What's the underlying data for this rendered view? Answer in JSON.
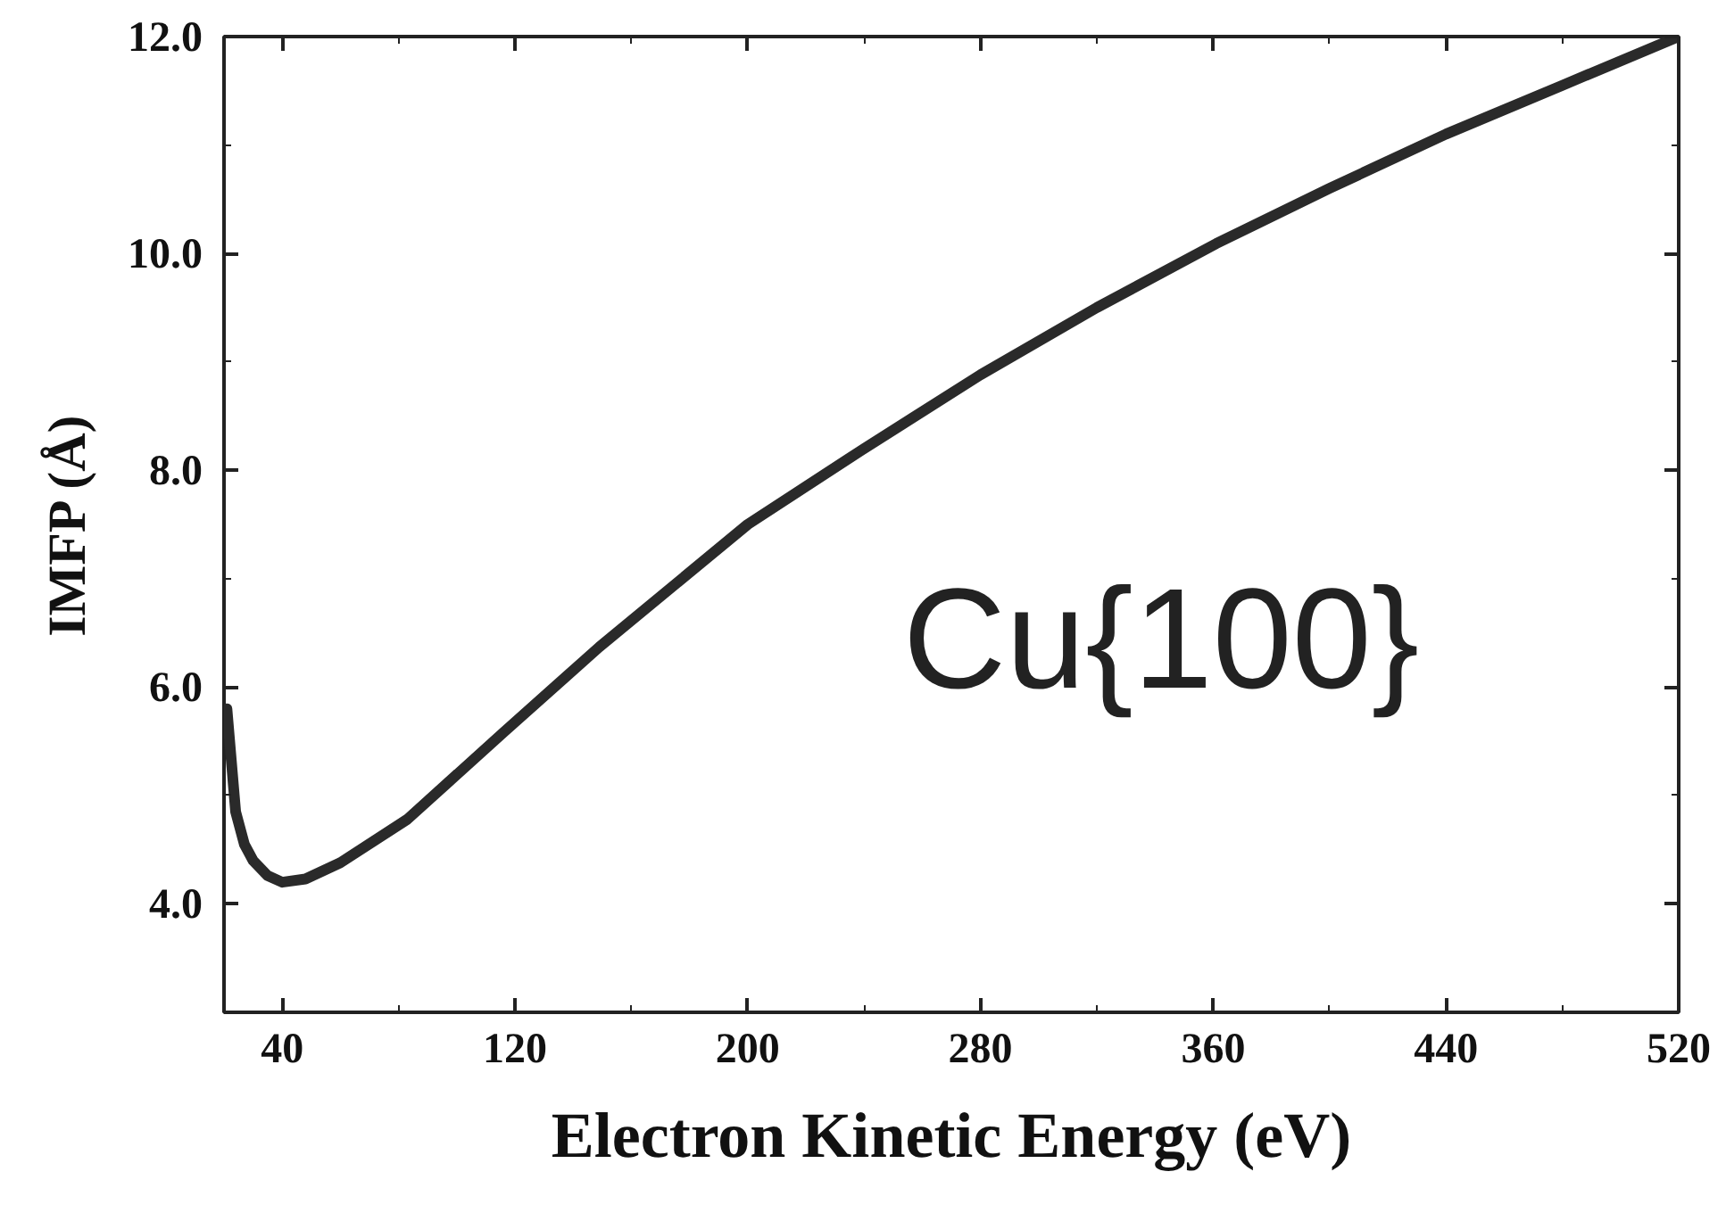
{
  "chart_data": {
    "type": "line",
    "xlabel": "Electron Kinetic Energy (eV)",
    "ylabel": "IMFP (Å)",
    "xlim": [
      20,
      520
    ],
    "ylim": [
      3,
      12
    ],
    "xticks": [
      40,
      120,
      200,
      280,
      360,
      440,
      520
    ],
    "yticks": [
      {
        "value": 4,
        "label": "4.0"
      },
      {
        "value": 6,
        "label": "6.0"
      },
      {
        "value": 8,
        "label": "8.0"
      },
      {
        "value": 10,
        "label": "10.0"
      },
      {
        "value": 12,
        "label": "12.0"
      }
    ],
    "grid": false,
    "line_style": "solid",
    "annotations": [
      "Cu{100}"
    ],
    "series": [
      {
        "color": "#2a2a2a",
        "x": [
          21,
          24,
          27,
          30,
          35,
          40,
          48,
          60,
          83,
          116,
          149,
          200,
          240,
          280,
          320,
          361,
          400,
          440,
          480,
          520
        ],
        "values": [
          5.8,
          4.85,
          4.55,
          4.4,
          4.26,
          4.2,
          4.23,
          4.38,
          4.78,
          5.58,
          6.37,
          7.5,
          8.2,
          8.88,
          9.5,
          10.09,
          10.6,
          11.1,
          11.55,
          12.0
        ]
      }
    ]
  }
}
